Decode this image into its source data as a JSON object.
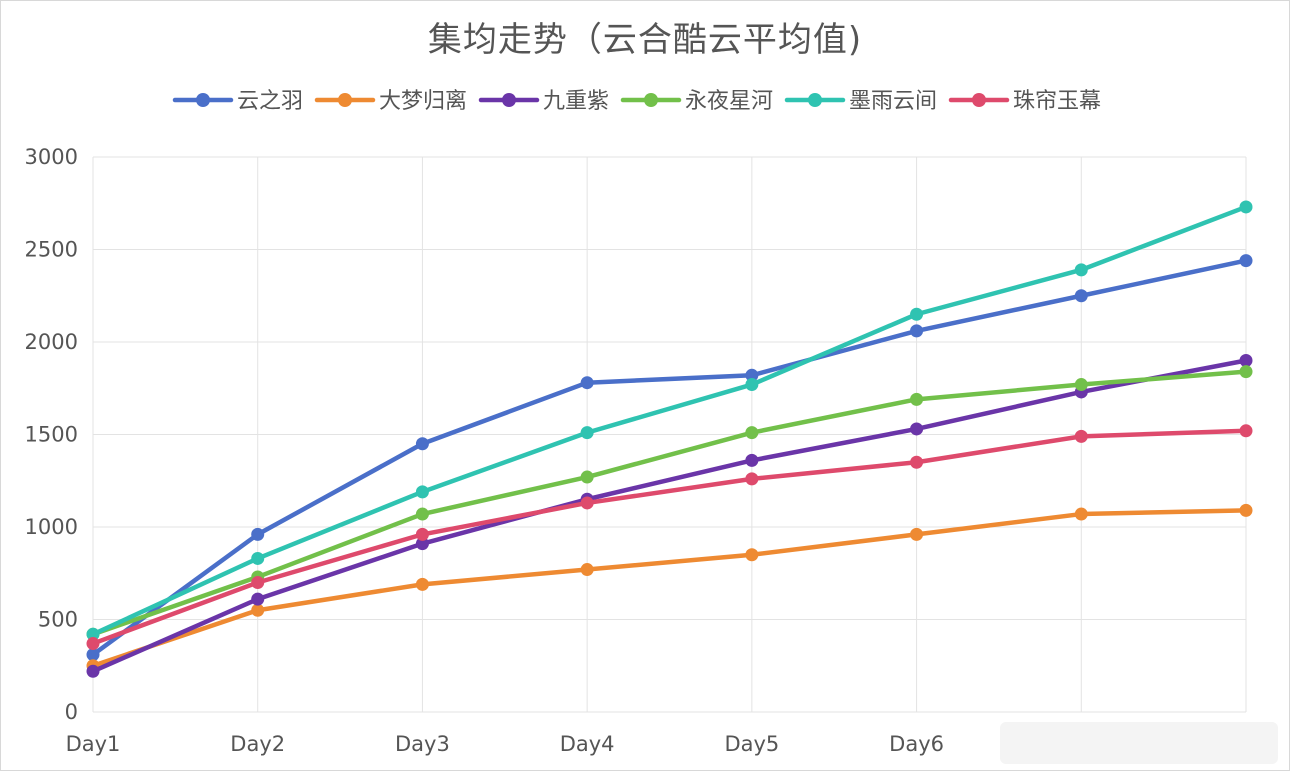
{
  "chart_data": {
    "type": "line",
    "title": "集均走势（云合酷云平均值)",
    "xlabel": "",
    "ylabel": "",
    "categories": [
      "Day1",
      "Day2",
      "Day3",
      "Day4",
      "Day5",
      "Day6",
      "",
      ""
    ],
    "ylim": [
      0,
      3000
    ],
    "yticks": [
      0,
      500,
      1000,
      1500,
      2000,
      2500,
      3000
    ],
    "grid": true,
    "legend_position": "top",
    "series": [
      {
        "name": "云之羽",
        "color": "#4a6fc9",
        "values": [
          310,
          960,
          1450,
          1780,
          1820,
          2060,
          2250,
          2440
        ]
      },
      {
        "name": "大梦归离",
        "color": "#ee8a32",
        "values": [
          250,
          550,
          690,
          770,
          850,
          960,
          1070,
          1090
        ]
      },
      {
        "name": "九重紫",
        "color": "#6a35a8",
        "values": [
          220,
          610,
          910,
          1150,
          1360,
          1530,
          1730,
          1900
        ]
      },
      {
        "name": "永夜星河",
        "color": "#72c04a",
        "values": [
          420,
          730,
          1070,
          1270,
          1510,
          1690,
          1770,
          1840
        ]
      },
      {
        "name": "墨雨云间",
        "color": "#2fc3b1",
        "values": [
          420,
          830,
          1190,
          1510,
          1770,
          2150,
          2390,
          2730
        ]
      },
      {
        "name": "珠帘玉幕",
        "color": "#de4a6c",
        "values": [
          370,
          700,
          960,
          1130,
          1260,
          1350,
          1490,
          1520
        ]
      }
    ]
  }
}
